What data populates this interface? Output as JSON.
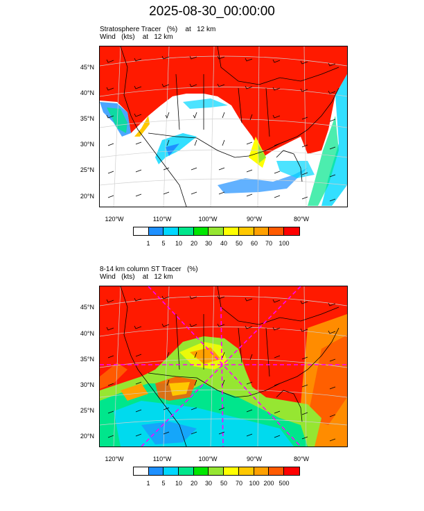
{
  "title": "2025-08-30_00:00:00",
  "panels": [
    {
      "line1": [
        "Stratosphere Tracer   (%)",
        "at   12 km"
      ],
      "line2": [
        "Wind   (kts)",
        "at   12 km"
      ],
      "lat_labels": [
        "45°N",
        "40°N",
        "35°N",
        "30°N",
        "25°N",
        "20°N"
      ],
      "lon_labels": [
        "120°W",
        "110°W",
        "100°W",
        "90°W",
        "80°W"
      ],
      "colorbar_labels": [
        "1",
        "5",
        "10",
        "20",
        "30",
        "40",
        "50",
        "60",
        "70",
        "100"
      ]
    },
    {
      "line1": [
        "8-14 km column ST Tracer   (%)",
        ""
      ],
      "line2": [
        "Wind   (kts)",
        "at   12 km"
      ],
      "lat_labels": [
        "45°N",
        "40°N",
        "35°N",
        "30°N",
        "25°N",
        "20°N"
      ],
      "lon_labels": [
        "120°W",
        "110°W",
        "100°W",
        "90°W",
        "80°W"
      ],
      "colorbar_labels": [
        "1",
        "5",
        "10",
        "20",
        "30",
        "50",
        "70",
        "100",
        "200",
        "500"
      ]
    }
  ],
  "colorbar_colors": [
    "#ffffff",
    "#1e90ff",
    "#00d7ff",
    "#00e68c",
    "#00e600",
    "#96e632",
    "#ffff00",
    "#ffc800",
    "#ffa000",
    "#ff5a00",
    "#ff0000"
  ],
  "colors": {
    "tracer_high": "#ff1a00",
    "tracer_mid": "#ff8c00",
    "land_outline": "#000000",
    "grid": "#d0d0d0",
    "marker": "#ff00ff"
  }
}
